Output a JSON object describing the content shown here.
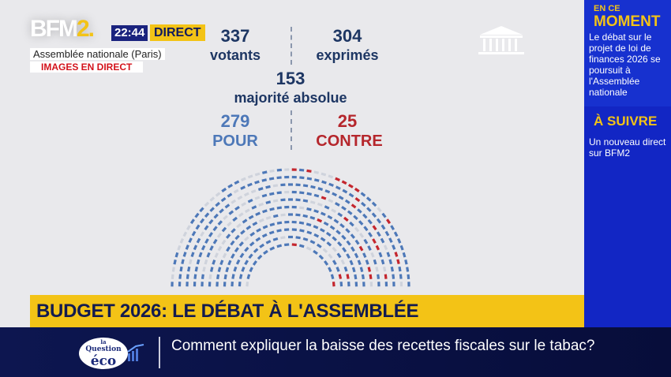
{
  "channel": {
    "logo": "BFM",
    "logo_num": "2.",
    "time": "22:44",
    "live_label": "DIRECT",
    "location": "Assemblée nationale (Paris)",
    "images_label": "IMAGES EN DIRECT"
  },
  "vote": {
    "votants": "337",
    "votants_label": "votants",
    "exprimes": "304",
    "exprimes_label": "exprimés",
    "majorite": "153",
    "majorite_label": "majorité absolue",
    "pour": "279",
    "pour_label": "POUR",
    "contre": "25",
    "contre_label": "CONTRE"
  },
  "hemicycle": {
    "seats_pour": 279,
    "seats_contre": 25,
    "colors": {
      "pour": "#4d78b8",
      "contre": "#c4262e",
      "other": "#cfd3dc"
    }
  },
  "sidebar": {
    "now_small": "EN CE",
    "now_big": "MOMENT",
    "now_text": "Le débat sur le projet de loi de finances 2026 se poursuit à l'Assemblée nationale",
    "next_title": "À SUIVRE",
    "next_text": "Un nouveau direct sur BFM2"
  },
  "banner": {
    "title": "BUDGET 2026: LE DÉBAT À L'ASSEMBLÉE"
  },
  "ticker": {
    "show_logo_small": "la",
    "show_logo_mid": "Question",
    "show_logo_big": "éco",
    "question": "Comment expliquer la baisse des recettes fiscales sur le tabac?"
  }
}
